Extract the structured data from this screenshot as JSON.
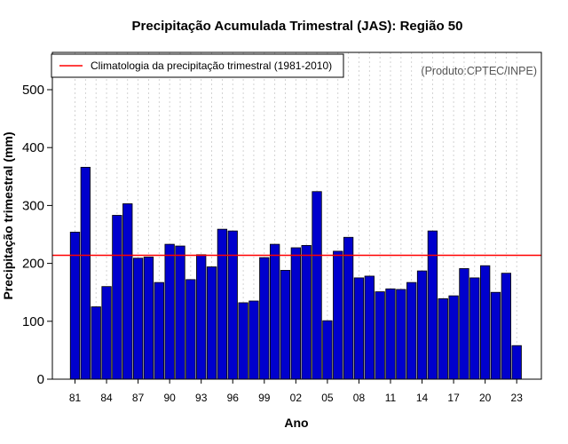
{
  "chart_data": {
    "type": "bar",
    "title": "Precipitação Acumulada Trimestral (JAS): Região 50",
    "xlabel": "Ano",
    "ylabel": "Precipitação trimestral (mm)",
    "credit": "(Produto:CPTEC/INPE)",
    "legend": {
      "label": "Climatologia da precipitação trimestral (1981-2010)",
      "position": "top-left"
    },
    "ylim": [
      0,
      550
    ],
    "yticks": [
      0,
      100,
      200,
      300,
      400,
      500
    ],
    "xtick_labels": [
      "81",
      "84",
      "87",
      "90",
      "93",
      "96",
      "99",
      "02",
      "05",
      "08",
      "11",
      "14",
      "17",
      "20",
      "23"
    ],
    "xtick_positions": [
      1981,
      1984,
      1987,
      1990,
      1993,
      1996,
      1999,
      2002,
      2005,
      2008,
      2011,
      2014,
      2017,
      2020,
      2023
    ],
    "grid": true,
    "climatology": 214,
    "years": [
      1981,
      1982,
      1983,
      1984,
      1985,
      1986,
      1987,
      1988,
      1989,
      1990,
      1991,
      1992,
      1993,
      1994,
      1995,
      1996,
      1997,
      1998,
      1999,
      2000,
      2001,
      2002,
      2003,
      2004,
      2005,
      2006,
      2007,
      2008,
      2009,
      2010,
      2011,
      2012,
      2013,
      2014,
      2015,
      2016,
      2017,
      2018,
      2019,
      2020,
      2021,
      2022,
      2023
    ],
    "values": [
      254,
      366,
      125,
      160,
      283,
      303,
      209,
      211,
      167,
      233,
      230,
      172,
      215,
      194,
      259,
      256,
      132,
      135,
      210,
      233,
      188,
      227,
      231,
      324,
      101,
      221,
      245,
      175,
      178,
      151,
      156,
      155,
      167,
      187,
      256,
      139,
      144,
      191,
      175,
      196,
      150,
      183,
      58
    ],
    "colors": {
      "bar_fill": "#0000cd",
      "bar_stroke": "#000000",
      "climatology_line": "#ff0000",
      "grid": "#c8c8c8"
    }
  }
}
